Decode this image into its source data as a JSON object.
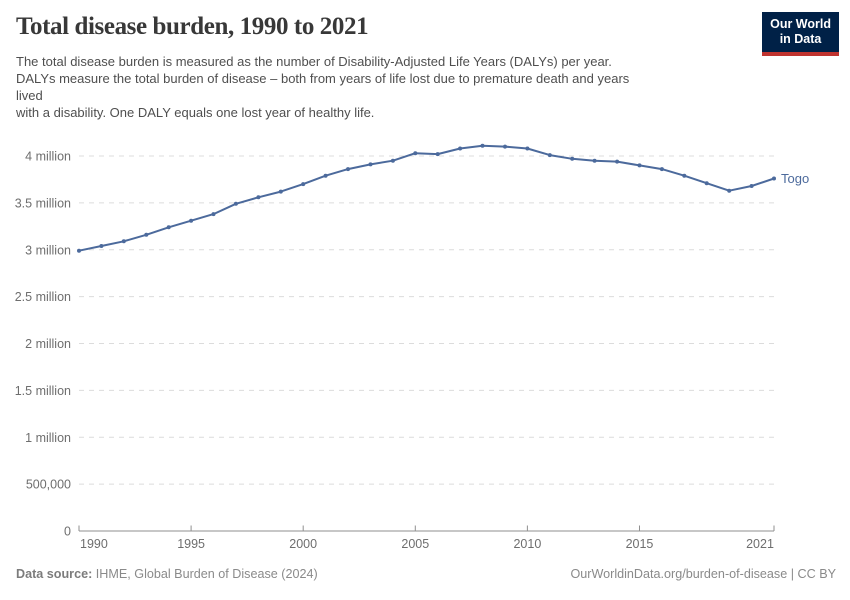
{
  "header": {
    "title": "Total disease burden, 1990 to 2021",
    "subtitle_lines": [
      "The total disease burden is measured as the number of Disability-Adjusted Life Years (DALYs) per year.",
      "DALYs measure the total burden of disease – both from years of life lost due to premature death and years",
      "lived",
      "with a disability. One DALY equals one lost year of healthy life."
    ],
    "logo": {
      "line1": "Our World",
      "line2": "in Data",
      "bg_color": "#002147",
      "bar_color": "#c0332f"
    }
  },
  "chart_data": {
    "type": "line",
    "title": "Total disease burden, 1990 to 2021",
    "unit": "DALYs (Disability-Adjusted Life Years) per year",
    "values_in": "millions",
    "grid": "horizontal dashed",
    "legend_position": "end-of-line label",
    "ylim": [
      0,
      4.25
    ],
    "xlim": [
      1990,
      2021
    ],
    "x": [
      1990,
      1991,
      1992,
      1993,
      1994,
      1995,
      1996,
      1997,
      1998,
      1999,
      2000,
      2001,
      2002,
      2003,
      2004,
      2005,
      2006,
      2007,
      2008,
      2009,
      2010,
      2011,
      2012,
      2013,
      2014,
      2015,
      2016,
      2017,
      2018,
      2019,
      2020,
      2021
    ],
    "series": [
      {
        "name": "Togo",
        "color": "#4c6a9c",
        "values": [
          2.99,
          3.04,
          3.09,
          3.16,
          3.24,
          3.31,
          3.38,
          3.49,
          3.56,
          3.62,
          3.7,
          3.79,
          3.86,
          3.91,
          3.95,
          4.03,
          4.02,
          4.08,
          4.11,
          4.1,
          4.08,
          4.01,
          3.97,
          3.95,
          3.94,
          3.9,
          3.86,
          3.79,
          3.71,
          3.63,
          3.68,
          3.76
        ]
      }
    ],
    "y_ticks": [
      {
        "value": 4,
        "label": "4 million"
      },
      {
        "value": 3.5,
        "label": "3.5 million"
      },
      {
        "value": 3,
        "label": "3 million"
      },
      {
        "value": 2.5,
        "label": "2.5 million"
      },
      {
        "value": 2,
        "label": "2 million"
      },
      {
        "value": 1.5,
        "label": "1.5 million"
      },
      {
        "value": 1,
        "label": "1 million"
      },
      {
        "value": 0.5,
        "label": "500,000"
      },
      {
        "value": 0,
        "label": "0"
      }
    ],
    "x_ticks": [
      {
        "year": 1990,
        "label": "1990"
      },
      {
        "year": 1995,
        "label": "1995"
      },
      {
        "year": 2000,
        "label": "2000"
      },
      {
        "year": 2005,
        "label": "2005"
      },
      {
        "year": 2010,
        "label": "2010"
      },
      {
        "year": 2015,
        "label": "2015"
      },
      {
        "year": 2021,
        "label": "2021"
      }
    ],
    "colors": {
      "grid": "#dcdcdc",
      "axis_line": "#8f8f8f",
      "axis_text": "#6e6e6e"
    }
  },
  "footer": {
    "data_source_label": "Data source:",
    "data_source_value": "IHME, Global Burden of Disease (2024)",
    "link": "OurWorldinData.org/burden-of-disease | CC BY"
  }
}
